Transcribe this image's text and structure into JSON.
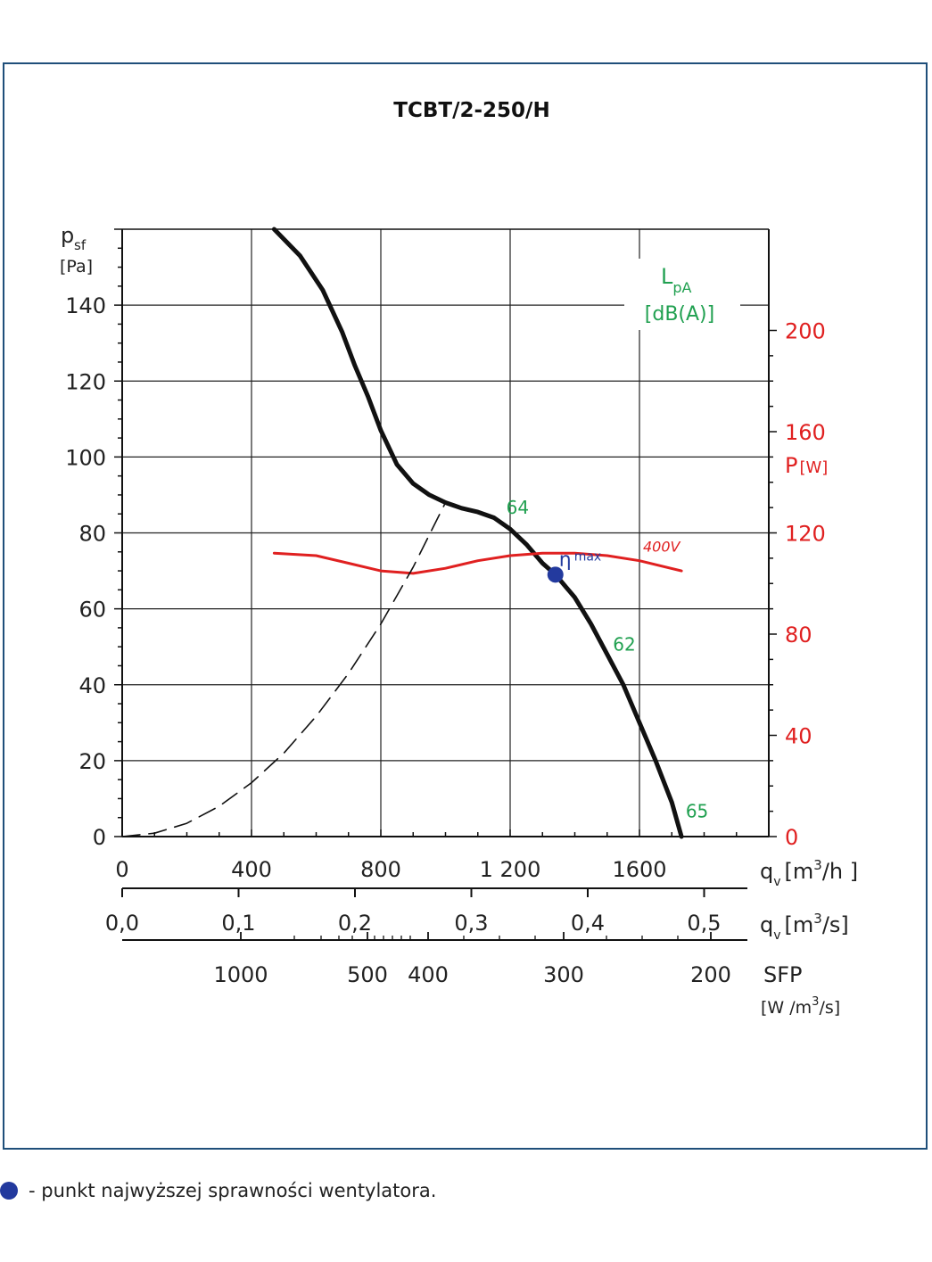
{
  "chart_data": {
    "type": "line",
    "title": "TCBT/2-250/H",
    "ylabel_main": "p",
    "ylabel_sub": "sf",
    "ylabel_unit": "[Pa]",
    "y_ticks": [
      "0",
      "20",
      "40",
      "60",
      "80",
      "100",
      "120",
      "140"
    ],
    "ylim": [
      0,
      160
    ],
    "x_ticks": [
      "0",
      "400",
      "800",
      "1 200",
      "1600"
    ],
    "xlim": [
      0,
      2000
    ],
    "xlabel_main": "q",
    "xlabel_sub": "v",
    "xlabel_unit_h_pre": "[m",
    "xlabel_unit_h_sup": "3",
    "xlabel_unit_h_post": "/h ]",
    "x2_ticks": [
      "0,0",
      "0,1",
      "0,2",
      "0,3",
      "0,4",
      "0,5"
    ],
    "x2_values": [
      0.0,
      0.1,
      0.2,
      0.3,
      0.4,
      0.5
    ],
    "xlabel2_unit_pre": "[m",
    "xlabel2_unit_sup": "3",
    "xlabel2_unit_post": "/s]",
    "sfp_ticks": [
      "1000",
      "500",
      "400",
      "300",
      "200"
    ],
    "sfp_values": [
      1000,
      500,
      400,
      300,
      200
    ],
    "sfp_label": "SFP",
    "sfp_unit_pre": "[W /m",
    "sfp_unit_sup": "3",
    "sfp_unit_post": "/s]",
    "power_label": "P",
    "power_unit": "[W]",
    "power_ticks": [
      "0",
      "40",
      "80",
      "120",
      "160",
      "200"
    ],
    "power_lim": [
      0,
      240
    ],
    "lpa_label": "L",
    "lpa_sub": "pA",
    "lpa_unit": "[dB(A)]",
    "series": [
      {
        "role": "pressure",
        "color": "#111111",
        "x": [
          470,
          550,
          620,
          680,
          720,
          760,
          800,
          850,
          900,
          950,
          1000,
          1050,
          1100,
          1150,
          1200,
          1250,
          1300,
          1340,
          1400,
          1450,
          1500,
          1550,
          1600,
          1650,
          1700,
          1730
        ],
        "y": [
          160,
          153,
          144,
          133,
          124,
          116,
          107,
          98,
          93,
          90,
          88,
          86.5,
          85.5,
          84,
          81,
          77,
          72,
          69,
          63,
          56,
          48,
          40,
          30,
          20,
          9,
          0
        ]
      },
      {
        "role": "power",
        "name": "400V",
        "color": "#e02020",
        "x": [
          470,
          600,
          700,
          800,
          900,
          1000,
          1100,
          1200,
          1300,
          1400,
          1500,
          1600,
          1730
        ],
        "y": [
          112,
          111,
          108,
          105,
          104,
          106,
          109,
          111,
          112,
          112,
          111,
          109,
          105
        ]
      },
      {
        "role": "system",
        "color": "#111111",
        "dashed": true,
        "x": [
          0,
          100,
          200,
          300,
          400,
          500,
          600,
          700,
          800,
          900,
          1000
        ],
        "y": [
          0,
          0.9,
          3.5,
          8,
          14.2,
          22,
          31.7,
          43,
          56,
          71,
          88
        ]
      }
    ],
    "eta_max": {
      "x": 1340,
      "y": 69,
      "label": "η",
      "label_sub": "max",
      "color": "#233a9e"
    },
    "sound_labels": [
      {
        "x": 1210,
        "y": 85,
        "text": "64"
      },
      {
        "x": 1540,
        "y": 49,
        "text": "62"
      },
      {
        "x": 1765,
        "y": 5,
        "text": "65"
      }
    ],
    "sound_color": "#20a050",
    "power_color": "#e02020"
  },
  "legend_note": {
    "text": "- punkt najwyższej sprawności wentylatora."
  }
}
